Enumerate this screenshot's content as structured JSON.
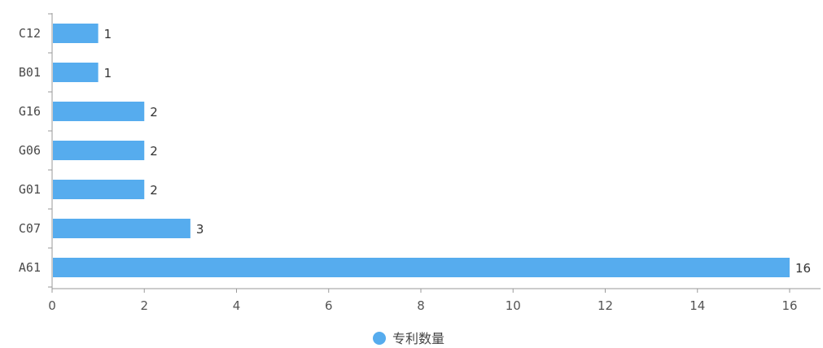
{
  "chart_data": {
    "type": "bar",
    "orientation": "horizontal",
    "categories": [
      "C12",
      "B01",
      "G16",
      "G06",
      "G01",
      "C07",
      "A61"
    ],
    "series": [
      {
        "name": "专利数量",
        "values": [
          1,
          1,
          2,
          2,
          2,
          3,
          16
        ]
      }
    ],
    "xlim": [
      0,
      16
    ],
    "x_ticks": [
      0,
      2,
      4,
      6,
      8,
      10,
      12,
      14,
      16
    ],
    "title": "",
    "xlabel": "",
    "ylabel": "",
    "legend_position": "bottom-center",
    "grid": false,
    "colors": {
      "bar": "#56acee",
      "legend_marker": "#56acee"
    }
  }
}
